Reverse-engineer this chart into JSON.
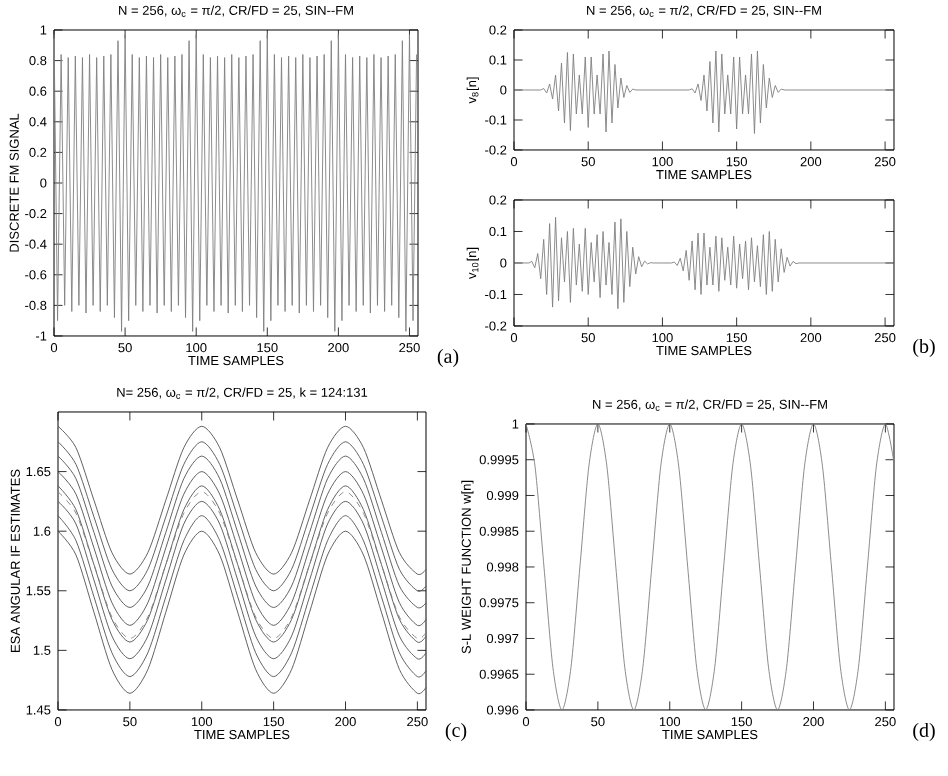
{
  "chart_data": [
    {
      "type": "line",
      "title": "N = 256, ω$_{c}$ = π/2, CR/FD = 25, SIN--FM",
      "xlabel": "TIME   SAMPLES",
      "ylabel": "DISCRETE  FM  SIGNAL",
      "annotations": [
        "(a)"
      ],
      "xlim": [
        0,
        256
      ],
      "ylim": [
        -1,
        1
      ],
      "xticks": [
        0,
        50,
        100,
        150,
        200,
        250
      ],
      "yticks": [
        -1,
        -0.8,
        -0.6,
        -0.4,
        -0.2,
        0,
        0.2,
        0.4,
        0.6,
        0.8,
        1
      ],
      "x": [
        0,
        2.5,
        5,
        7.5,
        10,
        12.5,
        15,
        17.5,
        20,
        22.5,
        25,
        27.5,
        30,
        32.5,
        35,
        37.5,
        40,
        42.5,
        45,
        47.5,
        50,
        52.5,
        55,
        57.5,
        60,
        62.5,
        65,
        67.5,
        70,
        72.5,
        75,
        77.5,
        80,
        82.5,
        85,
        87.5,
        90,
        92.5,
        95,
        97.5,
        100,
        102.5,
        105,
        107.5,
        110,
        112.5,
        115,
        117.5,
        120,
        122.5,
        125,
        127.5,
        130,
        132.5,
        135,
        137.5,
        140,
        142.5,
        145,
        147.5,
        150,
        152.5,
        155,
        157.5,
        160,
        162.5,
        165,
        167.5,
        170,
        172.5,
        175,
        177.5,
        180,
        182.5,
        185,
        187.5,
        190,
        192.5,
        195,
        197.5,
        200,
        202.5,
        205,
        207.5,
        210,
        212.5,
        215,
        217.5,
        220,
        222.5,
        225,
        227.5,
        230,
        232.5,
        235,
        237.5,
        240,
        242.5,
        245,
        247.5,
        250,
        252.5,
        255
      ],
      "series": [
        {
          "color": "#7f7f7f",
          "values": [
            0.97,
            -0.9,
            0.84,
            -0.8,
            0.82,
            -0.84,
            0.83,
            -0.8,
            0.82,
            -0.85,
            0.84,
            -0.8,
            0.82,
            -0.84,
            0.83,
            -0.8,
            0.84,
            -0.88,
            0.93,
            -0.97,
            0.97,
            -0.9,
            0.84,
            -0.8,
            0.82,
            -0.84,
            0.83,
            -0.8,
            0.82,
            -0.85,
            0.84,
            -0.8,
            0.82,
            -0.84,
            0.83,
            -0.8,
            0.84,
            -0.88,
            0.93,
            -0.97,
            0.97,
            -0.9,
            0.84,
            -0.8,
            0.82,
            -0.84,
            0.83,
            -0.8,
            0.82,
            -0.85,
            0.84,
            -0.8,
            0.82,
            -0.84,
            0.83,
            -0.8,
            0.84,
            -0.88,
            0.93,
            -0.97,
            0.97,
            -0.9,
            0.84,
            -0.8,
            0.82,
            -0.84,
            0.83,
            -0.8,
            0.82,
            -0.85,
            0.84,
            -0.8,
            0.82,
            -0.84,
            0.83,
            -0.8,
            0.84,
            -0.88,
            0.93,
            -0.97,
            0.97,
            -0.9,
            0.84,
            -0.8,
            0.82,
            -0.84,
            0.83,
            -0.8,
            0.82,
            -0.85,
            0.84,
            -0.8,
            0.82,
            -0.84,
            0.83,
            -0.8,
            0.84,
            -0.88,
            0.93,
            -0.97,
            0.97,
            -0.9,
            0.84
          ]
        }
      ]
    },
    {
      "type": "line",
      "title": "N = 256, ω$_{c}$ = π/2, CR/FD = 25, SIN--FM",
      "xlabel": "TIME   SAMPLES",
      "ylabel": "v$_{8}$[n]",
      "xlim": [
        0,
        256
      ],
      "ylim": [
        -0.2,
        0.2
      ],
      "xticks": [
        0,
        50,
        100,
        150,
        200,
        250
      ],
      "yticks": [
        -0.2,
        -0.1,
        0,
        0.1,
        0.2
      ],
      "x": [
        0,
        18,
        20,
        22,
        24,
        26,
        28,
        30,
        32,
        34,
        36,
        38,
        40,
        42,
        44,
        46,
        48,
        50,
        52,
        54,
        56,
        58,
        60,
        62,
        64,
        66,
        68,
        70,
        72,
        74,
        76,
        78,
        80,
        82,
        118,
        120,
        122,
        124,
        126,
        128,
        130,
        132,
        134,
        136,
        138,
        140,
        142,
        144,
        146,
        148,
        150,
        152,
        154,
        156,
        158,
        160,
        162,
        164,
        166,
        168,
        170,
        172,
        174,
        176,
        178,
        180,
        182,
        256
      ],
      "series": [
        {
          "color": "#7f7f7f",
          "values": [
            0,
            0,
            0.005,
            -0.01,
            0.02,
            -0.03,
            0.05,
            -0.07,
            0.09,
            -0.11,
            0.125,
            -0.135,
            0.12,
            -0.08,
            0.05,
            -0.08,
            0.11,
            -0.125,
            0.11,
            -0.08,
            0.05,
            -0.08,
            0.12,
            -0.14,
            0.13,
            -0.11,
            0.085,
            -0.06,
            0.04,
            -0.025,
            0.015,
            -0.008,
            0.003,
            0,
            0,
            0.004,
            -0.01,
            0.02,
            -0.035,
            0.05,
            -0.07,
            0.095,
            -0.11,
            0.13,
            -0.14,
            0.12,
            -0.08,
            0.05,
            -0.08,
            0.11,
            -0.13,
            0.11,
            -0.08,
            0.05,
            -0.08,
            0.12,
            -0.145,
            0.13,
            -0.11,
            0.085,
            -0.06,
            0.04,
            -0.025,
            0.015,
            -0.008,
            0.003,
            0,
            0
          ]
        }
      ]
    },
    {
      "type": "line",
      "xlabel": "TIME   SAMPLES",
      "ylabel": "v$_{10}$[n]",
      "annotations": [
        "(b)"
      ],
      "xlim": [
        0,
        256
      ],
      "ylim": [
        -0.2,
        0.2
      ],
      "xticks": [
        0,
        50,
        100,
        150,
        200,
        250
      ],
      "yticks": [
        -0.2,
        -0.1,
        0,
        0.1,
        0.2
      ],
      "x": [
        0,
        10,
        12,
        14,
        16,
        18,
        20,
        22,
        24,
        26,
        28,
        30,
        32,
        34,
        36,
        38,
        40,
        42,
        44,
        46,
        48,
        50,
        52,
        54,
        56,
        58,
        60,
        62,
        64,
        66,
        68,
        70,
        72,
        74,
        76,
        78,
        80,
        82,
        84,
        86,
        88,
        90,
        92,
        94,
        96,
        106,
        108,
        110,
        112,
        114,
        116,
        118,
        120,
        122,
        124,
        126,
        128,
        130,
        132,
        134,
        136,
        138,
        140,
        142,
        144,
        146,
        148,
        150,
        152,
        154,
        156,
        158,
        160,
        162,
        164,
        166,
        168,
        170,
        172,
        174,
        176,
        178,
        180,
        182,
        184,
        186,
        188,
        190,
        192,
        194,
        256
      ],
      "series": [
        {
          "color": "#7f7f7f",
          "values": [
            0,
            0,
            0.005,
            -0.015,
            0.03,
            -0.05,
            0.075,
            -0.1,
            0.125,
            -0.14,
            0.145,
            -0.12,
            0.08,
            -0.06,
            0.1,
            -0.125,
            0.11,
            -0.07,
            0.06,
            -0.09,
            0.11,
            -0.1,
            0.065,
            -0.06,
            0.09,
            -0.11,
            0.1,
            -0.07,
            0.065,
            -0.1,
            0.13,
            -0.145,
            0.14,
            -0.125,
            0.1,
            -0.075,
            0.05,
            -0.035,
            0.02,
            -0.012,
            0.006,
            -0.003,
            0.001,
            0,
            0,
            0,
            0.003,
            -0.008,
            0.015,
            -0.025,
            0.04,
            -0.055,
            0.07,
            -0.085,
            0.095,
            -0.1,
            0.095,
            -0.07,
            0.05,
            -0.07,
            0.085,
            -0.09,
            0.08,
            -0.055,
            0.05,
            -0.07,
            0.085,
            -0.08,
            0.06,
            -0.05,
            0.07,
            -0.085,
            0.08,
            -0.06,
            0.055,
            -0.075,
            0.09,
            -0.1,
            0.1,
            -0.09,
            0.075,
            -0.06,
            0.045,
            -0.03,
            0.018,
            -0.01,
            0.005,
            -0.002,
            0,
            0,
            0
          ]
        }
      ]
    },
    {
      "type": "line",
      "title": "N= 256, ω$_{c}$ = π/2, CR/FD = 25, k = 124:131",
      "xlabel": "TIME   SAMPLES",
      "ylabel": "ESA  ANGULAR  IF  ESTIMATES",
      "annotations": [
        "(c)"
      ],
      "xlim": [
        0,
        256
      ],
      "ylim": [
        1.45,
        1.7
      ],
      "xticks": [
        0,
        50,
        100,
        150,
        200,
        250
      ],
      "yticks": [
        1.45,
        1.5,
        1.55,
        1.6,
        1.65
      ],
      "x": [
        0,
        12.5,
        25,
        37.5,
        50,
        62.5,
        75,
        87.5,
        100,
        112.5,
        125,
        137.5,
        150,
        162.5,
        175,
        187.5,
        200,
        212.5,
        225,
        237.5,
        250,
        256
      ],
      "series": [
        {
          "color": "#505050",
          "values": [
            1.6,
            1.58,
            1.532,
            1.484,
            1.464,
            1.484,
            1.532,
            1.58,
            1.6,
            1.58,
            1.532,
            1.484,
            1.464,
            1.484,
            1.532,
            1.58,
            1.6,
            1.58,
            1.532,
            1.484,
            1.464,
            1.469
          ]
        },
        {
          "color": "#505050",
          "values": [
            1.613,
            1.592,
            1.545,
            1.498,
            1.478,
            1.498,
            1.545,
            1.592,
            1.613,
            1.592,
            1.545,
            1.498,
            1.478,
            1.498,
            1.545,
            1.592,
            1.613,
            1.592,
            1.545,
            1.498,
            1.478,
            1.483
          ]
        },
        {
          "color": "#505050",
          "values": [
            1.625,
            1.606,
            1.559,
            1.512,
            1.493,
            1.512,
            1.559,
            1.606,
            1.625,
            1.606,
            1.559,
            1.512,
            1.493,
            1.512,
            1.559,
            1.606,
            1.625,
            1.606,
            1.559,
            1.512,
            1.493,
            1.498
          ]
        },
        {
          "color": "#505050",
          "values": [
            1.638,
            1.618,
            1.572,
            1.526,
            1.507,
            1.526,
            1.572,
            1.618,
            1.638,
            1.618,
            1.572,
            1.526,
            1.507,
            1.526,
            1.572,
            1.618,
            1.638,
            1.618,
            1.572,
            1.526,
            1.507,
            1.512
          ]
        },
        {
          "color": "#505050",
          "values": [
            1.65,
            1.631,
            1.586,
            1.54,
            1.521,
            1.54,
            1.586,
            1.631,
            1.65,
            1.631,
            1.586,
            1.54,
            1.521,
            1.54,
            1.586,
            1.631,
            1.65,
            1.631,
            1.586,
            1.54,
            1.521,
            1.526
          ]
        },
        {
          "color": "#505050",
          "values": [
            1.663,
            1.644,
            1.599,
            1.554,
            1.536,
            1.554,
            1.599,
            1.644,
            1.663,
            1.644,
            1.599,
            1.554,
            1.536,
            1.554,
            1.599,
            1.644,
            1.663,
            1.644,
            1.599,
            1.554,
            1.536,
            1.54
          ]
        },
        {
          "color": "#505050",
          "values": [
            1.675,
            1.656,
            1.612,
            1.568,
            1.55,
            1.568,
            1.612,
            1.656,
            1.675,
            1.656,
            1.612,
            1.568,
            1.55,
            1.568,
            1.612,
            1.656,
            1.675,
            1.656,
            1.612,
            1.568,
            1.55,
            1.554
          ]
        },
        {
          "color": "#505050",
          "values": [
            1.688,
            1.67,
            1.626,
            1.582,
            1.564,
            1.582,
            1.626,
            1.67,
            1.688,
            1.67,
            1.626,
            1.582,
            1.564,
            1.582,
            1.626,
            1.67,
            1.688,
            1.67,
            1.626,
            1.582,
            1.564,
            1.568
          ]
        },
        {
          "color": "#808080",
          "line_style": "dashed",
          "values": [
            1.633,
            1.615,
            1.572,
            1.528,
            1.51,
            1.528,
            1.572,
            1.615,
            1.633,
            1.615,
            1.572,
            1.528,
            1.51,
            1.528,
            1.572,
            1.615,
            1.633,
            1.615,
            1.572,
            1.528,
            1.51,
            1.515
          ]
        }
      ]
    },
    {
      "type": "line",
      "title": "N = 256, ω$_{c}$ = π/2, CR/FD = 25, SIN--FM",
      "xlabel": "TIME   SAMPLES",
      "ylabel": "S-L  WEIGHT  FUNCTION  w[n]",
      "annotations": [
        "(d)"
      ],
      "xlim": [
        0,
        256
      ],
      "ylim": [
        0.996,
        1
      ],
      "xticks": [
        0,
        50,
        100,
        150,
        200,
        250
      ],
      "yticks": [
        0.996,
        0.9965,
        0.997,
        0.9975,
        0.998,
        0.9985,
        0.999,
        0.9995,
        1
      ],
      "x": [
        0,
        6.25,
        12.5,
        18.75,
        25,
        31.25,
        37.5,
        43.75,
        50,
        56.25,
        62.5,
        68.75,
        75,
        81.25,
        87.5,
        93.75,
        100,
        106.25,
        112.5,
        118.75,
        125,
        131.25,
        137.5,
        143.75,
        150,
        156.25,
        162.5,
        168.75,
        175,
        181.25,
        187.5,
        193.75,
        200,
        206.25,
        212.5,
        218.75,
        225,
        231.25,
        237.5,
        243.75,
        250,
        256
      ],
      "series": [
        {
          "color": "#7f7f7f",
          "values": [
            1,
            0.99941,
            0.998,
            0.99659,
            0.996,
            0.99659,
            0.998,
            0.99941,
            1,
            0.99941,
            0.998,
            0.99659,
            0.996,
            0.99659,
            0.998,
            0.99941,
            1,
            0.99941,
            0.998,
            0.99659,
            0.996,
            0.99659,
            0.998,
            0.99941,
            1,
            0.99941,
            0.998,
            0.99659,
            0.996,
            0.99659,
            0.998,
            0.99941,
            1,
            0.99941,
            0.998,
            0.99659,
            0.996,
            0.99659,
            0.998,
            0.99941,
            1,
            0.99946
          ]
        }
      ]
    }
  ]
}
